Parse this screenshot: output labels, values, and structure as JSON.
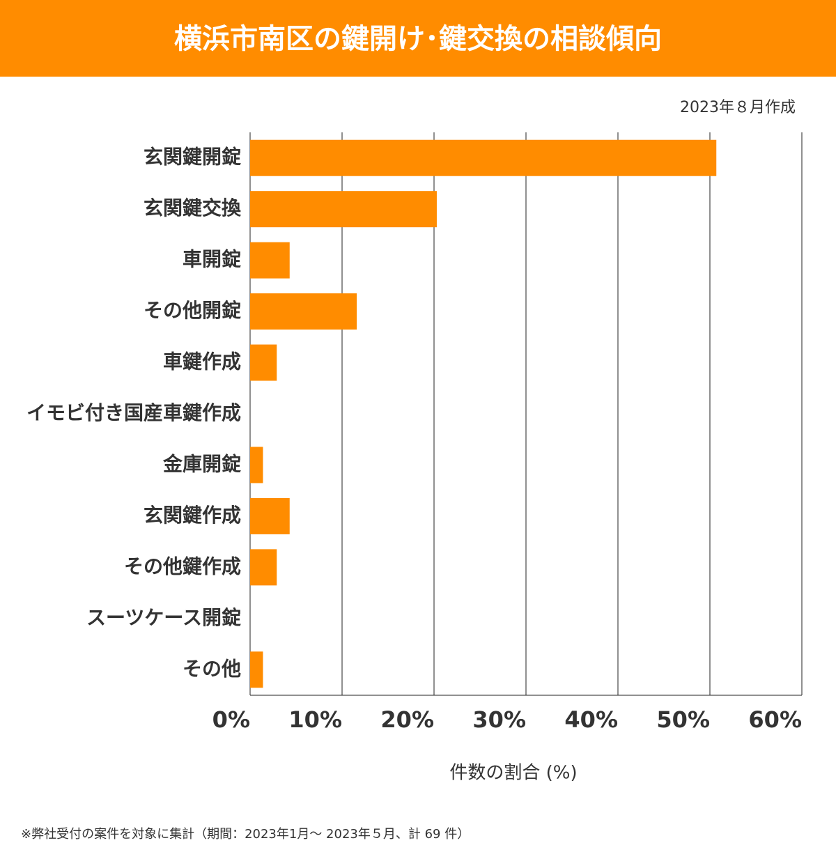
{
  "chart_data": {
    "type": "hbar",
    "title": "横浜市南区の鍵開け･鍵交換の相談傾向",
    "subtitle": "2023年８月作成",
    "x_label": "件数の割合 (%)",
    "note": "※弊社受付の案件を対象に集計（期間：2023年1月～ 2023年５月、計 69 件）",
    "categories": [
      "玄関鍵開錠",
      "玄関鍵交換",
      "車開錠",
      "その他開錠",
      "車鍵作成",
      "イモビ付き国産車鍵作成",
      "金庫開錠",
      "玄関鍵作成",
      "その他鍵作成",
      "スーツケース開錠",
      "その他"
    ],
    "values": [
      50.7,
      20.3,
      4.3,
      11.6,
      2.9,
      0,
      1.4,
      4.3,
      2.9,
      0,
      1.4
    ],
    "color": "#ff8c00",
    "xlim": [
      0,
      60
    ],
    "xticks": [
      {
        "value": 0,
        "label": "0%"
      },
      {
        "value": 10,
        "label": "10%"
      },
      {
        "value": 20,
        "label": "20%"
      },
      {
        "value": 30,
        "label": "30%"
      },
      {
        "value": 40,
        "label": "40%"
      },
      {
        "value": 50,
        "label": "50%"
      },
      {
        "value": 60,
        "label": "60%"
      }
    ],
    "grid": true
  }
}
